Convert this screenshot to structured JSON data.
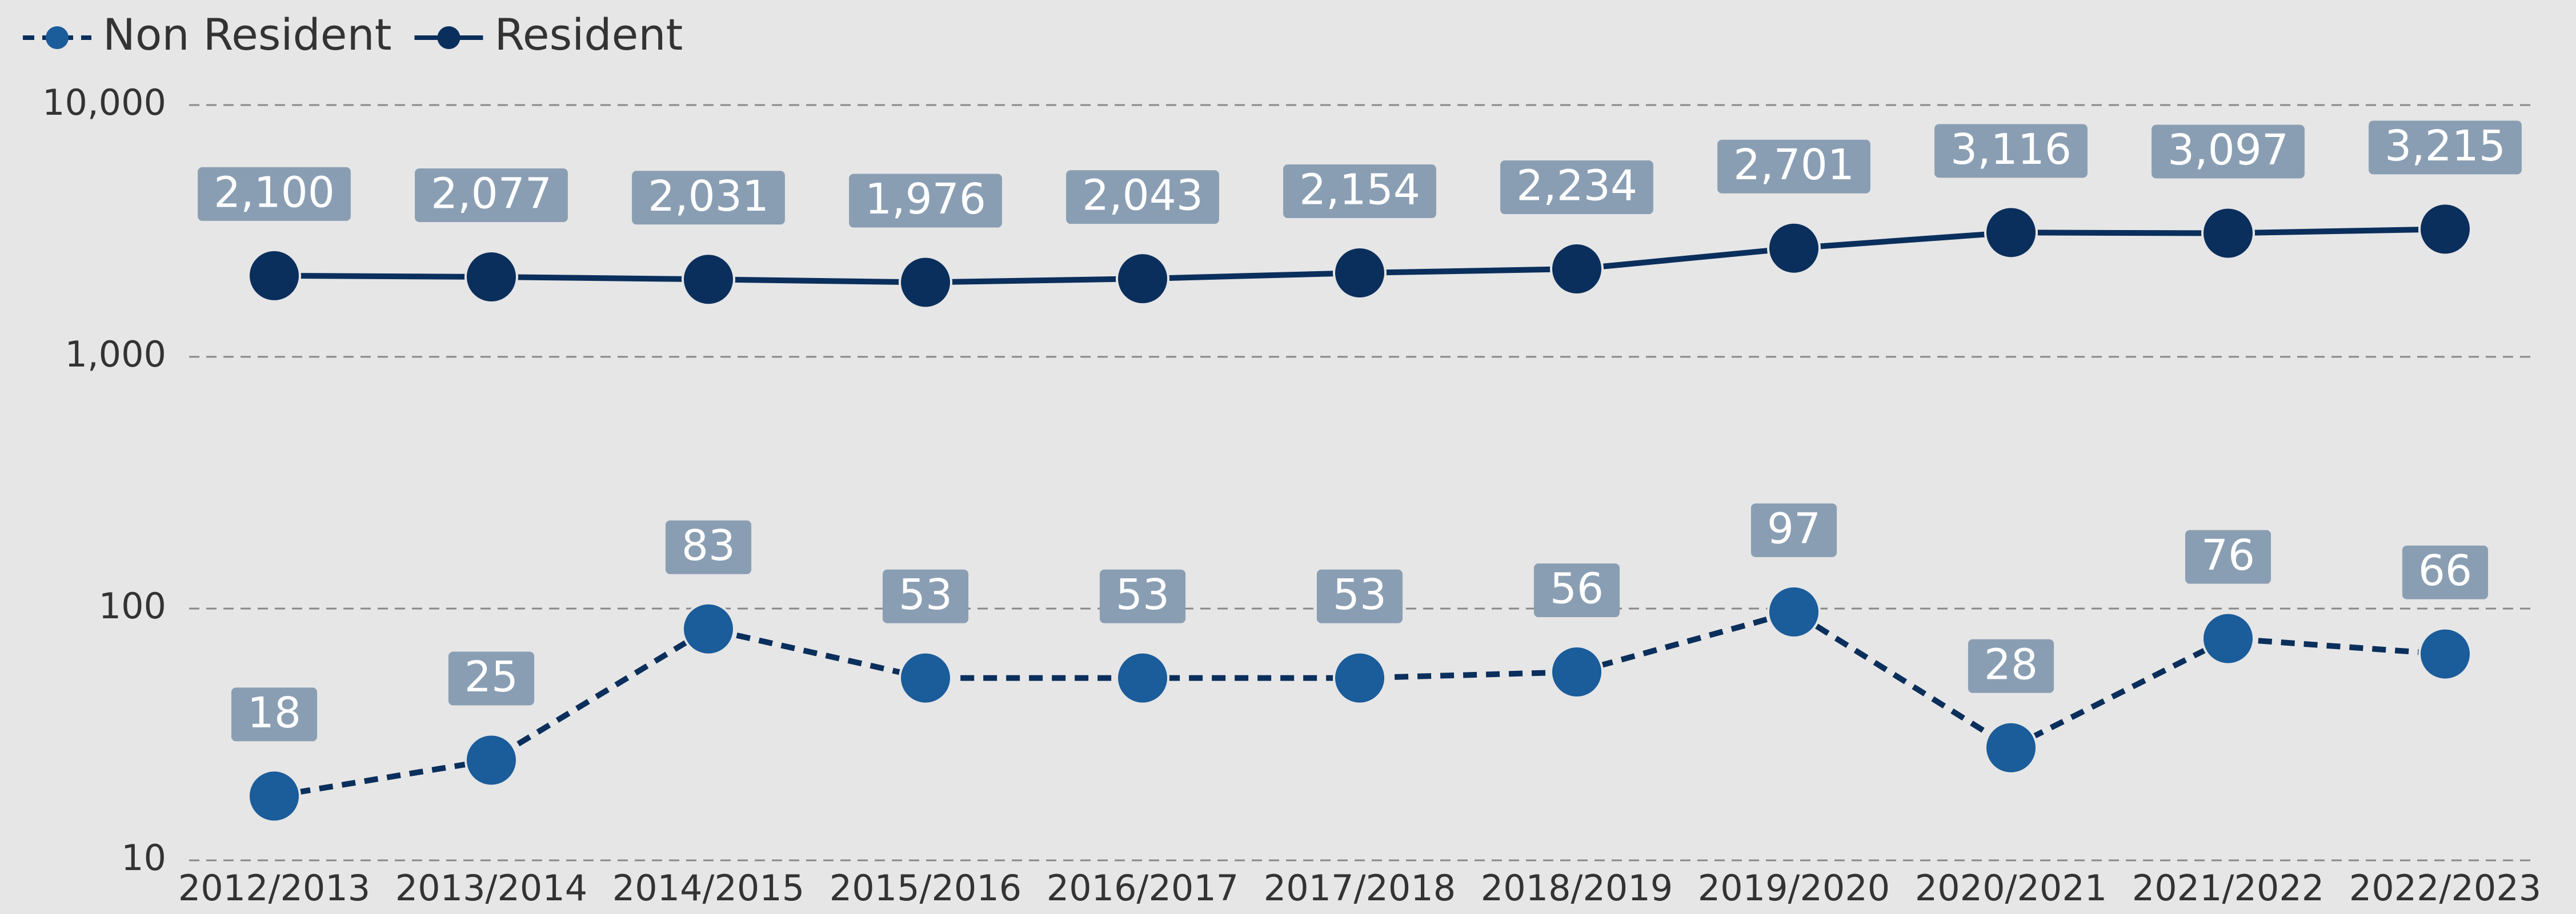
{
  "chart_data": {
    "type": "line",
    "log_scale": true,
    "grid": true,
    "legend": "top-left",
    "categories": [
      "2012/2013",
      "2013/2014",
      "2014/2015",
      "2015/2016",
      "2016/2017",
      "2017/2018",
      "2018/2019",
      "2019/2020",
      "2020/2021",
      "2021/2022",
      "2022/2023"
    ],
    "series": [
      {
        "name": "Non Resident",
        "color": "#1b5c9a",
        "line_color": "#0b2f5c",
        "dashed": true,
        "values": [
          18,
          25,
          83,
          53,
          53,
          53,
          56,
          97,
          28,
          76,
          66
        ]
      },
      {
        "name": "Resident",
        "color": "#0b2f5c",
        "line_color": "#0b2f5c",
        "dashed": false,
        "values": [
          2100,
          2077,
          2031,
          1976,
          2043,
          2154,
          2234,
          2701,
          3116,
          3097,
          3215
        ],
        "value_labels": [
          "2,100",
          "2,077",
          "2,031",
          "1,976",
          "2,043",
          "2,154",
          "2,234",
          "2,701",
          "3,116",
          "3,097",
          "3,215"
        ]
      }
    ],
    "ylim": [
      10,
      10000
    ],
    "yticks": [
      10,
      100,
      {
        "value": 1000,
        "label": "1,000"
      },
      {
        "value": 10000,
        "label": "10,000"
      }
    ]
  }
}
